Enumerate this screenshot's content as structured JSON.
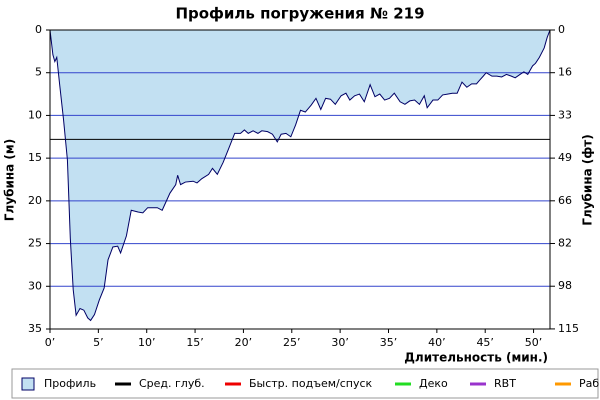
{
  "chart_data": {
    "type": "area",
    "title": "Профиль погружения № 219",
    "x_label": "Длительность (мин.)",
    "y_label": "Глубина (м)",
    "y2_label": "Глубина (фт)",
    "xlim": [
      0,
      51.7
    ],
    "ylim": [
      0,
      35
    ],
    "y2lim": [
      0,
      114.83
    ],
    "y_inverted": true,
    "xticks": [
      {
        "value": 0,
        "label": "0’"
      },
      {
        "value": 5,
        "label": "5’"
      },
      {
        "value": 10,
        "label": "10’"
      },
      {
        "value": 15,
        "label": "15’"
      },
      {
        "value": 20,
        "label": "20’"
      },
      {
        "value": 25,
        "label": "25’"
      },
      {
        "value": 30,
        "label": "30’"
      },
      {
        "value": 35,
        "label": "35’"
      },
      {
        "value": 40,
        "label": "40’"
      },
      {
        "value": 45,
        "label": "45’"
      },
      {
        "value": 50,
        "label": "50’"
      }
    ],
    "yticks": [
      0,
      5,
      10,
      15,
      20,
      25,
      30,
      35
    ],
    "y2ticks": [
      0,
      {
        "value": 16.4,
        "label": "16"
      },
      {
        "value": 32.8,
        "label": "33"
      },
      {
        "value": 49.2,
        "label": "49"
      },
      {
        "value": 65.6,
        "label": "66"
      },
      {
        "value": 82.0,
        "label": "82"
      },
      {
        "value": 98.4,
        "label": "98"
      },
      {
        "value": 114.8,
        "label": "115"
      }
    ],
    "grid": true,
    "grid_color": "#3344cc",
    "avg_depth": 12.8,
    "x": [
      0,
      0.3,
      0.5,
      0.7,
      1.0,
      1.4,
      1.8,
      2.1,
      2.4,
      2.7,
      3.1,
      3.5,
      3.9,
      4.2,
      4.6,
      5.1,
      5.6,
      6.0,
      6.5,
      7.0,
      7.3,
      7.9,
      8.4,
      9.1,
      9.6,
      10.1,
      11.1,
      11.6,
      12.4,
      13.0,
      13.2,
      13.5,
      14.0,
      14.8,
      15.2,
      15.7,
      16.4,
      16.8,
      17.3,
      17.9,
      18.4,
      19.1,
      19.7,
      20.1,
      20.5,
      21.0,
      21.5,
      21.9,
      22.5,
      23.0,
      23.5,
      23.9,
      24.4,
      24.9,
      25.4,
      25.9,
      26.4,
      27.0,
      27.5,
      28.0,
      28.5,
      29.0,
      29.5,
      30.1,
      30.6,
      31.0,
      31.5,
      32.0,
      32.5,
      33.1,
      33.6,
      34.1,
      34.6,
      35.1,
      35.6,
      36.2,
      36.7,
      37.2,
      37.7,
      38.2,
      38.7,
      39.0,
      39.6,
      40.1,
      40.6,
      41.1,
      41.6,
      42.1,
      42.6,
      43.1,
      43.6,
      44.1,
      44.4,
      44.8,
      45.1,
      45.7,
      46.2,
      46.7,
      47.2,
      47.7,
      48.1,
      48.6,
      49.0,
      49.4,
      49.9,
      50.2,
      50.6,
      51.1,
      51.4,
      51.7
    ],
    "series": [
      {
        "name": "Профиль",
        "color": "#c2e0f2",
        "line_color": "#000066",
        "values": [
          0,
          2.9,
          3.7,
          3.2,
          6.4,
          10.5,
          15.2,
          24.4,
          30.4,
          33.4,
          32.6,
          32.8,
          33.7,
          34.0,
          33.3,
          31.6,
          30.2,
          26.9,
          25.4,
          25.3,
          26.1,
          24.1,
          21.1,
          21.3,
          21.4,
          20.8,
          20.8,
          21.1,
          19.1,
          18.1,
          17.0,
          18.1,
          17.8,
          17.7,
          17.9,
          17.4,
          16.9,
          16.2,
          16.9,
          15.5,
          14.1,
          12.1,
          12.1,
          11.7,
          12.1,
          11.8,
          12.1,
          11.8,
          11.9,
          12.2,
          13.1,
          12.2,
          12.1,
          12.5,
          11.1,
          9.4,
          9.6,
          8.8,
          8.0,
          9.3,
          8.0,
          8.1,
          8.7,
          7.7,
          7.4,
          8.2,
          7.7,
          7.5,
          8.4,
          6.4,
          7.8,
          7.5,
          8.2,
          8.0,
          7.4,
          8.4,
          8.7,
          8.3,
          8.2,
          8.7,
          7.7,
          9.1,
          8.2,
          8.2,
          7.6,
          7.5,
          7.4,
          7.4,
          6.1,
          6.7,
          6.3,
          6.3,
          5.9,
          5.4,
          5.0,
          5.4,
          5.4,
          5.5,
          5.2,
          5.4,
          5.6,
          5.2,
          4.9,
          5.2,
          4.2,
          3.9,
          3.2,
          2.1,
          0.9,
          0
        ]
      }
    ],
    "legend": [
      {
        "name": "Профиль",
        "color": "#c2e0f2"
      },
      {
        "name": "Сред. глуб.",
        "color": "#000000"
      },
      {
        "name": "Быстр. подъем/спуск",
        "color": "#ee0000"
      },
      {
        "name": "Деко",
        "color": "#22dd22"
      },
      {
        "name": "RBT",
        "color": "#9933cc"
      },
      {
        "name": "Раб.",
        "color": "#ff9900"
      }
    ]
  }
}
